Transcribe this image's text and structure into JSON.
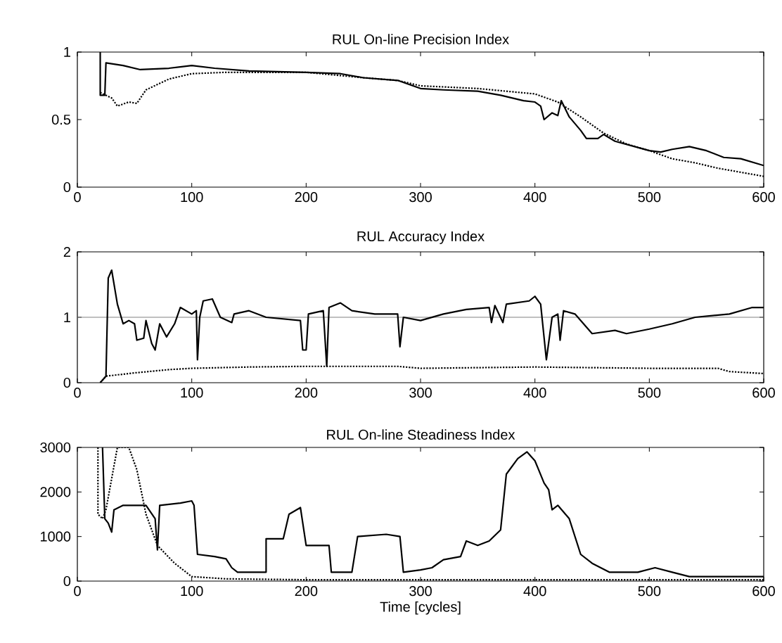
{
  "chart_data": [
    {
      "type": "line",
      "title": "RUL On-line Precision Index",
      "xlim": [
        0,
        600
      ],
      "ylim": [
        0,
        1
      ],
      "xticks": [
        0,
        100,
        200,
        300,
        400,
        500,
        600
      ],
      "yticks": [
        0,
        0.5,
        1
      ],
      "grid": false,
      "series": [
        {
          "color": "#000000",
          "line_style": "solid",
          "x": [
            20,
            20,
            24,
            25,
            40,
            55,
            80,
            100,
            120,
            150,
            200,
            230,
            250,
            280,
            290,
            300,
            320,
            350,
            370,
            390,
            400,
            405,
            408,
            415,
            420,
            423,
            430,
            440,
            445,
            455,
            460,
            470,
            500,
            510,
            520,
            535,
            550,
            565,
            580,
            600
          ],
          "values": [
            1.0,
            0.68,
            0.68,
            0.92,
            0.9,
            0.87,
            0.88,
            0.9,
            0.88,
            0.86,
            0.85,
            0.84,
            0.81,
            0.79,
            0.76,
            0.73,
            0.72,
            0.71,
            0.68,
            0.64,
            0.63,
            0.6,
            0.5,
            0.55,
            0.53,
            0.64,
            0.52,
            0.42,
            0.36,
            0.36,
            0.39,
            0.34,
            0.27,
            0.26,
            0.28,
            0.3,
            0.27,
            0.22,
            0.21,
            0.16
          ]
        },
        {
          "color": "#000000",
          "line_style": "dotted",
          "x": [
            20,
            30,
            35,
            45,
            52,
            60,
            80,
            100,
            130,
            200,
            250,
            280,
            300,
            350,
            400,
            420,
            440,
            460,
            480,
            500,
            520,
            540,
            560,
            580,
            600
          ],
          "values": [
            0.7,
            0.66,
            0.6,
            0.63,
            0.62,
            0.72,
            0.8,
            0.84,
            0.85,
            0.85,
            0.81,
            0.79,
            0.75,
            0.73,
            0.69,
            0.63,
            0.52,
            0.4,
            0.32,
            0.27,
            0.21,
            0.18,
            0.14,
            0.11,
            0.08
          ]
        }
      ]
    },
    {
      "type": "line",
      "title": "RUL Accuracy Index",
      "xlim": [
        0,
        600
      ],
      "ylim": [
        0,
        2
      ],
      "xticks": [
        0,
        100,
        200,
        300,
        400,
        500,
        600
      ],
      "yticks": [
        0,
        1,
        2
      ],
      "grid": false,
      "ref_lines": [
        {
          "axis": "y",
          "value": 1,
          "color": "#808080"
        }
      ],
      "series": [
        {
          "color": "#000000",
          "line_style": "solid",
          "x": [
            20,
            25,
            27,
            30,
            35,
            40,
            45,
            50,
            52,
            58,
            60,
            65,
            68,
            72,
            78,
            85,
            90,
            100,
            104,
            105,
            107,
            110,
            118,
            125,
            135,
            137,
            150,
            165,
            195,
            197,
            200,
            202,
            215,
            218,
            220,
            230,
            240,
            260,
            280,
            282,
            285,
            300,
            320,
            340,
            360,
            362,
            365,
            372,
            375,
            395,
            400,
            405,
            410,
            415,
            420,
            422,
            425,
            435,
            450,
            470,
            480,
            500,
            520,
            540,
            570,
            590,
            600
          ],
          "values": [
            0,
            0.1,
            1.6,
            1.72,
            1.2,
            0.9,
            0.95,
            0.9,
            0.65,
            0.68,
            0.95,
            0.6,
            0.5,
            0.9,
            0.7,
            0.9,
            1.15,
            1.05,
            1.1,
            0.35,
            1.0,
            1.25,
            1.28,
            1.0,
            0.92,
            1.05,
            1.1,
            1.0,
            0.95,
            0.5,
            0.5,
            1.05,
            1.1,
            0.25,
            1.15,
            1.22,
            1.1,
            1.05,
            1.05,
            0.55,
            1.0,
            0.95,
            1.05,
            1.12,
            1.15,
            0.92,
            1.18,
            0.92,
            1.2,
            1.25,
            1.32,
            1.2,
            0.35,
            1.0,
            1.05,
            0.65,
            1.1,
            1.05,
            0.75,
            0.8,
            0.75,
            0.82,
            0.9,
            1.0,
            1.05,
            1.15,
            1.15
          ]
        },
        {
          "color": "#000000",
          "line_style": "dotted",
          "x": [
            20,
            25,
            50,
            80,
            100,
            150,
            200,
            280,
            300,
            400,
            500,
            560,
            570,
            600
          ],
          "values": [
            0,
            0.1,
            0.15,
            0.2,
            0.22,
            0.24,
            0.25,
            0.25,
            0.22,
            0.24,
            0.22,
            0.22,
            0.17,
            0.14
          ]
        }
      ]
    },
    {
      "type": "line",
      "title": "RUL On-line Steadiness Index",
      "xlabel": "Time [cycles]",
      "xlim": [
        0,
        600
      ],
      "ylim": [
        0,
        3000
      ],
      "xticks": [
        0,
        100,
        200,
        300,
        400,
        500,
        600
      ],
      "yticks": [
        0,
        1000,
        2000,
        3000
      ],
      "grid": false,
      "series": [
        {
          "color": "#000000",
          "line_style": "solid",
          "x": [
            22,
            24,
            27,
            30,
            32,
            40,
            60,
            68,
            70,
            72,
            90,
            100,
            102,
            105,
            120,
            130,
            135,
            140,
            165,
            165,
            180,
            185,
            195,
            200,
            220,
            222,
            240,
            245,
            270,
            282,
            285,
            300,
            310,
            320,
            335,
            340,
            350,
            360,
            370,
            375,
            385,
            393,
            400,
            408,
            412,
            415,
            420,
            430,
            440,
            450,
            465,
            490,
            505,
            520,
            535,
            600
          ],
          "values": [
            3000,
            1400,
            1300,
            1100,
            1600,
            1700,
            1700,
            1400,
            700,
            1700,
            1750,
            1800,
            1700,
            600,
            550,
            500,
            300,
            200,
            200,
            950,
            950,
            1500,
            1650,
            800,
            800,
            200,
            200,
            1000,
            1050,
            1000,
            200,
            250,
            300,
            480,
            550,
            900,
            800,
            900,
            1150,
            2400,
            2750,
            2900,
            2700,
            2200,
            2050,
            1600,
            1700,
            1400,
            600,
            400,
            200,
            200,
            300,
            200,
            100,
            100
          ]
        },
        {
          "color": "#000000",
          "line_style": "dotted",
          "x": [
            18,
            18,
            22,
            25,
            30,
            35,
            45,
            52,
            60,
            70,
            85,
            100,
            130,
            200,
            400,
            600
          ],
          "values": [
            3000,
            1500,
            1400,
            1600,
            2300,
            3000,
            3000,
            2500,
            1500,
            800,
            400,
            100,
            50,
            30,
            30,
            30
          ]
        }
      ]
    }
  ]
}
